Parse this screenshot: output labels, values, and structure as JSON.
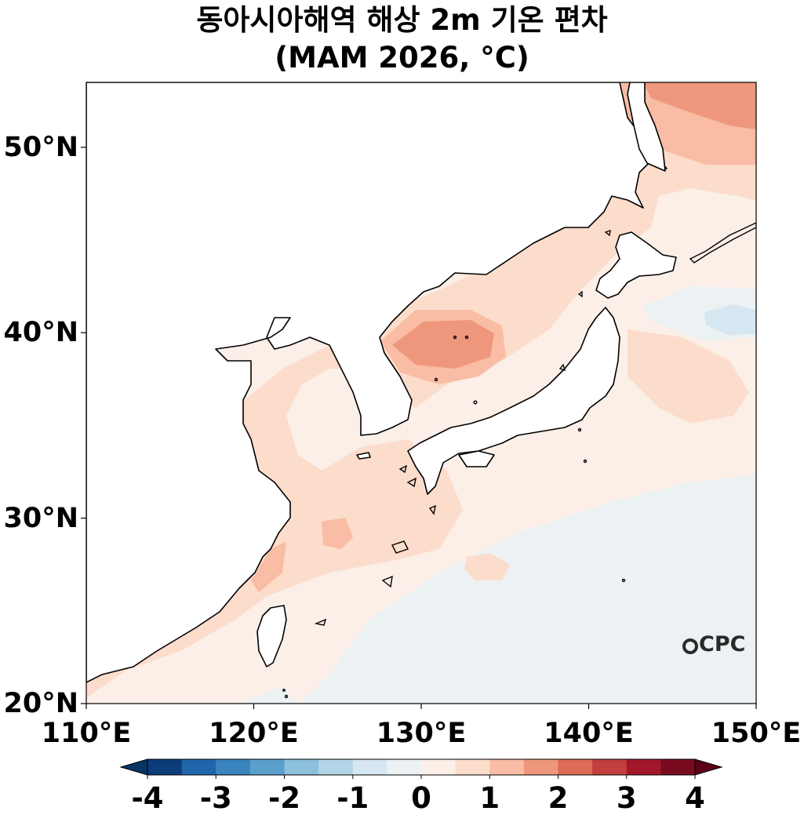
{
  "title": {
    "line1": "동아시아해역 해상 2m 기온 편차",
    "line2": "(MAM 2026, °C)"
  },
  "map": {
    "extent": {
      "lon": [
        110,
        150
      ],
      "lat": [
        20,
        53.5
      ]
    },
    "lat_ticks": [
      {
        "value": 20,
        "label": "20°N"
      },
      {
        "value": 30,
        "label": "30°N"
      },
      {
        "value": 40,
        "label": "40°N"
      },
      {
        "value": 50,
        "label": "50°N"
      }
    ],
    "lon_ticks": [
      {
        "value": 110,
        "label": "110°E"
      },
      {
        "value": 120,
        "label": "120°E"
      },
      {
        "value": 130,
        "label": "130°E"
      },
      {
        "value": 140,
        "label": "140°E"
      },
      {
        "value": 150,
        "label": "150°E"
      }
    ],
    "logo": "CPC"
  },
  "colorbar": {
    "ticks": [
      {
        "value": -4,
        "label": "-4"
      },
      {
        "value": -3,
        "label": "-3"
      },
      {
        "value": -2,
        "label": "-2"
      },
      {
        "value": -1,
        "label": "-1"
      },
      {
        "value": 0,
        "label": "0"
      },
      {
        "value": 1,
        "label": "1"
      },
      {
        "value": 2,
        "label": "2"
      },
      {
        "value": 3,
        "label": "3"
      },
      {
        "value": 4,
        "label": "4"
      }
    ],
    "colors": [
      "#0b3d78",
      "#1f66ab",
      "#3a84bf",
      "#5aa0cd",
      "#8cc0dd",
      "#b3d5e8",
      "#d6e7f1",
      "#ecf2f4",
      "#fbefe8",
      "#fcdccb",
      "#f9bca4",
      "#ef977c",
      "#dd6b56",
      "#c13f3c",
      "#a3172a",
      "#790b20"
    ],
    "over_color": "#5c0018",
    "under_color": "#063563",
    "min": -4,
    "max": 4
  }
}
